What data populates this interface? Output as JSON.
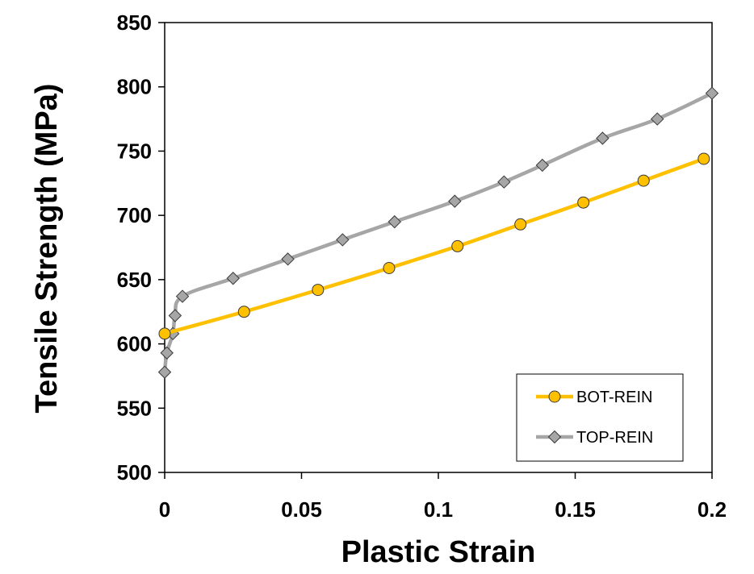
{
  "chart_data": {
    "type": "line",
    "xlabel": "Plastic Strain",
    "ylabel": "Tensile Strength (MPa)",
    "xlim": [
      0,
      0.2
    ],
    "ylim": [
      500,
      850
    ],
    "xticks": [
      0,
      0.05,
      0.1,
      0.15,
      0.2
    ],
    "xtick_labels": [
      "0",
      "0.05",
      "0.1",
      "0.15",
      "0.2"
    ],
    "yticks": [
      500,
      550,
      600,
      650,
      700,
      750,
      800,
      850
    ],
    "ytick_labels": [
      "500",
      "550",
      "600",
      "650",
      "700",
      "750",
      "800",
      "850"
    ],
    "grid": false,
    "legend_position": "bottom-right",
    "series": [
      {
        "name": "BOT-REIN",
        "color": "#FFC000",
        "marker": "circle",
        "x": [
          0.0,
          0.029,
          0.056,
          0.082,
          0.107,
          0.13,
          0.153,
          0.175,
          0.197
        ],
        "y": [
          608,
          625,
          642,
          659,
          676,
          693,
          710,
          727,
          744
        ]
      },
      {
        "name": "TOP-REIN",
        "color": "#A6A6A6",
        "marker": "diamond",
        "x": [
          0.0,
          0.0008,
          0.003,
          0.0038,
          0.0065,
          0.025,
          0.045,
          0.065,
          0.084,
          0.106,
          0.124,
          0.138,
          0.16,
          0.18,
          0.2
        ],
        "y": [
          578,
          593,
          608,
          622,
          637,
          651,
          666,
          681,
          695,
          711,
          726,
          739,
          760,
          775,
          795
        ]
      }
    ]
  }
}
